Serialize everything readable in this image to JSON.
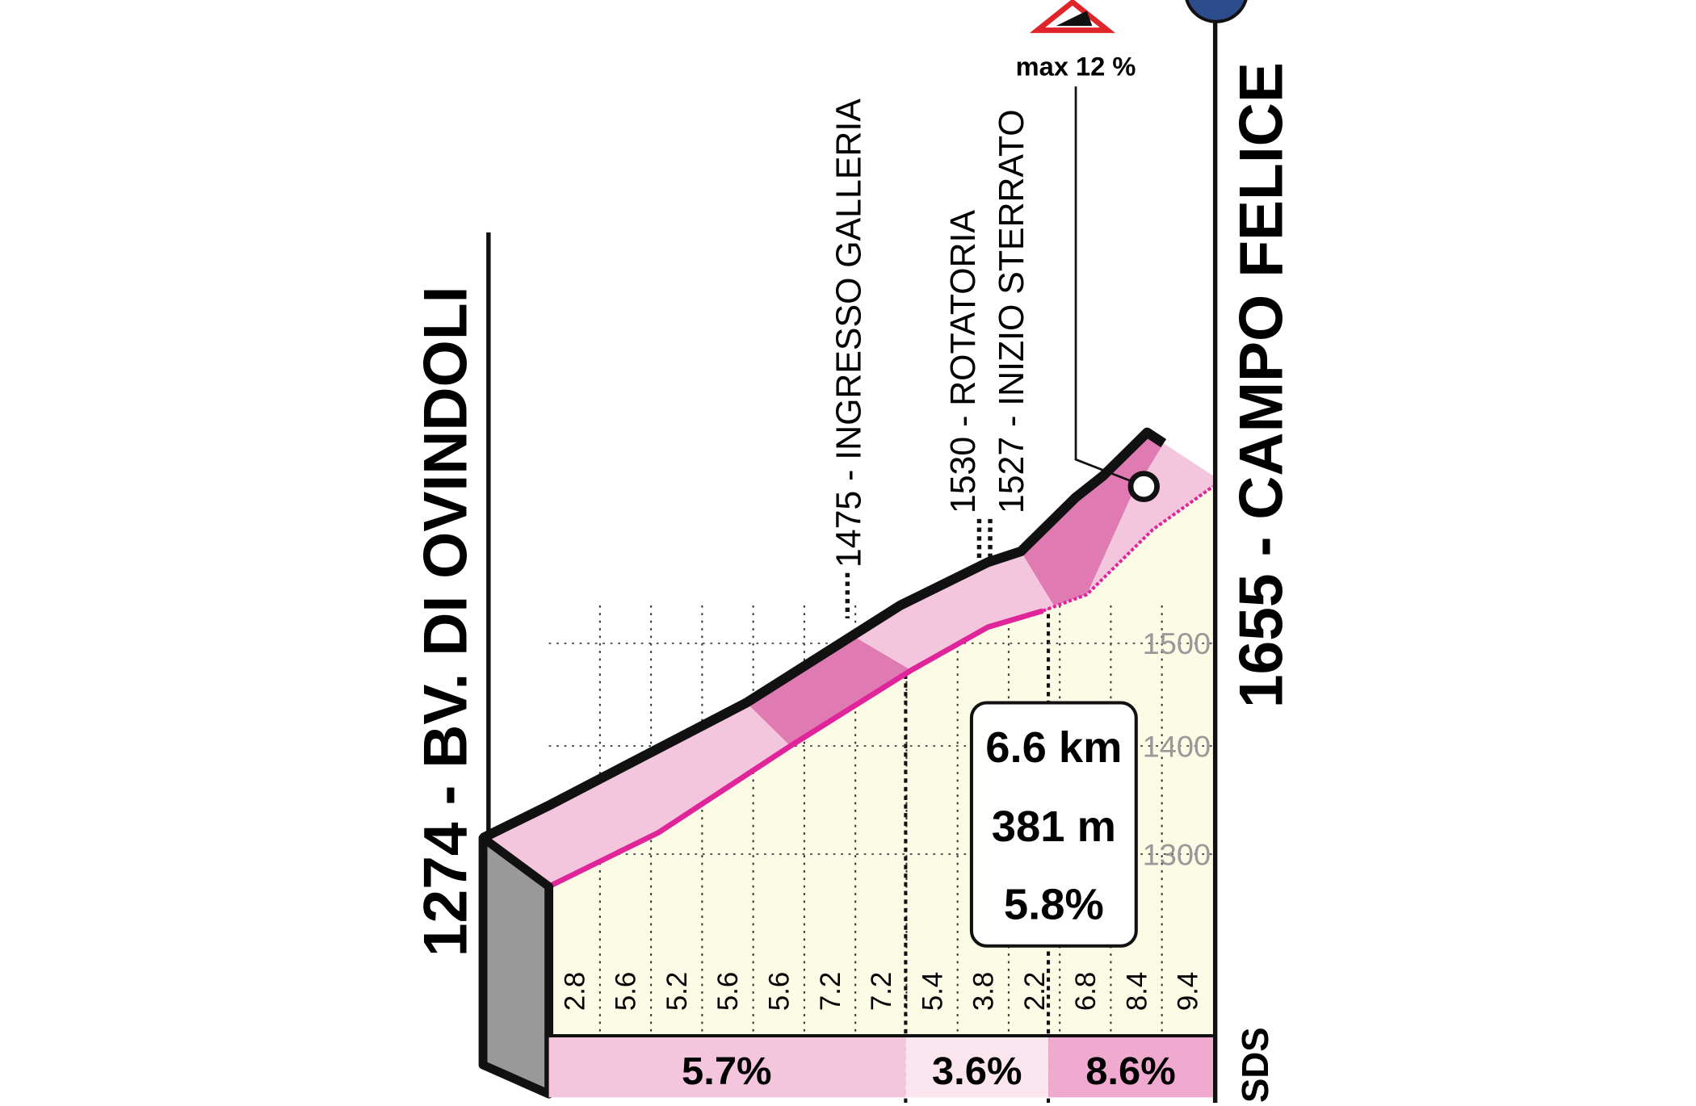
{
  "start": {
    "label": "1274 - BV. DI OVINDOLI"
  },
  "finish": {
    "label": "1655 - CAMPO FELICE"
  },
  "waypoints": [
    {
      "label": "1475 - INGRESSO GALLERIA"
    },
    {
      "label": "1530 - ROTATORIA"
    },
    {
      "label": "1527 - INIZIO STERRATO"
    }
  ],
  "max_gradient": "max 12 %",
  "elevation_ticks": [
    "1500",
    "1400",
    "1300"
  ],
  "km_gradients": [
    "2.8",
    "5.6",
    "5.2",
    "5.6",
    "5.6",
    "7.2",
    "7.2",
    "5.4",
    "3.8",
    "2.2",
    "6.8",
    "8.4",
    "9.4"
  ],
  "sector_gradients": [
    "5.7%",
    "3.6%",
    "8.6%"
  ],
  "summary": {
    "distance": "6.6 km",
    "gain": "381 m",
    "average": "5.8%"
  },
  "logo": "SDS"
}
